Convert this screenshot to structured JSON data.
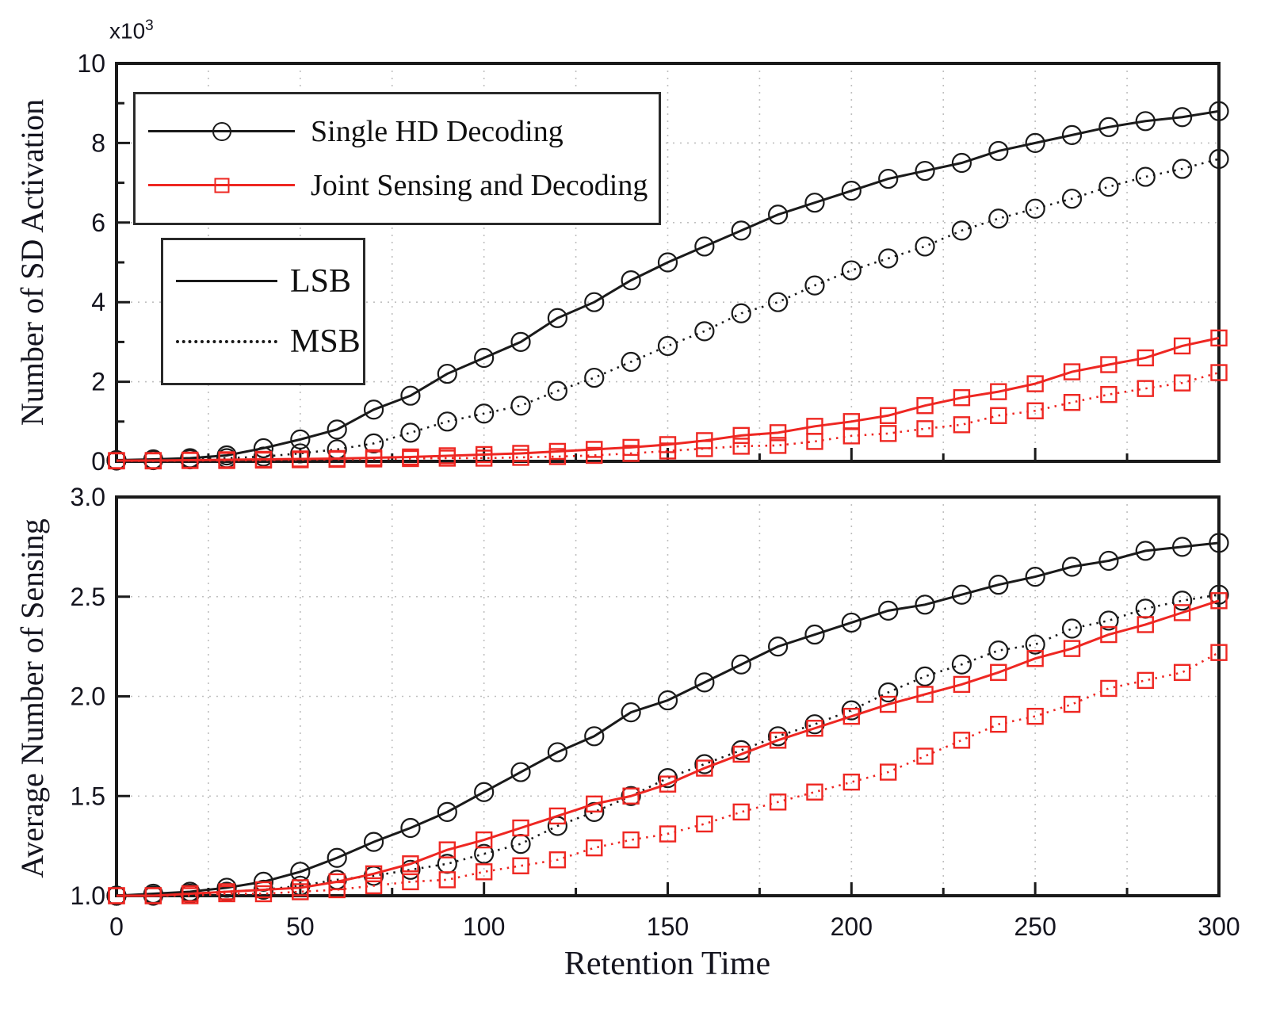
{
  "figure": {
    "xlabel": "Retention Time",
    "multiplier_base": "x10",
    "multiplier_exp": "3",
    "colors": {
      "black_series": "#1a1a1a",
      "red_series": "#ee2722",
      "grid": "#bfbfbf"
    }
  },
  "legend_series": {
    "items": [
      {
        "label": "Single HD Decoding",
        "color": "#1a1a1a",
        "marker": "circle"
      },
      {
        "label": "Joint Sensing and Decoding",
        "color": "#ee2722",
        "marker": "square"
      }
    ]
  },
  "legend_linestyle": {
    "items": [
      {
        "label": "LSB",
        "line": "solid"
      },
      {
        "label": "MSB",
        "line": "dotted"
      }
    ]
  },
  "chart_data": [
    {
      "type": "line",
      "name": "sd-activation-plot",
      "title": "",
      "xlabel": "",
      "ylabel": "Number of SD Activation",
      "y_multiplier": "x10^3",
      "xlim": [
        0,
        300
      ],
      "ylim": [
        0,
        10
      ],
      "xticks": [
        0,
        50,
        100,
        150,
        200,
        250,
        300
      ],
      "xtick_labels": [
        "0",
        "50",
        "100",
        "150",
        "200",
        "250",
        "300"
      ],
      "show_xtick_labels": false,
      "xminor": 25,
      "yticks": [
        0,
        2,
        4,
        6,
        8,
        10
      ],
      "ytick_labels": [
        "0",
        "2",
        "4",
        "6",
        "8",
        "10"
      ],
      "yminors": [
        1,
        3,
        5,
        7,
        9
      ],
      "ygrid": [
        2,
        4,
        6,
        8
      ],
      "grid": true,
      "legend_position": "upper-left",
      "x": [
        0,
        10,
        20,
        30,
        40,
        50,
        60,
        70,
        80,
        90,
        100,
        110,
        120,
        130,
        140,
        150,
        160,
        170,
        180,
        190,
        200,
        210,
        220,
        230,
        240,
        250,
        260,
        270,
        280,
        290,
        300
      ],
      "series": [
        {
          "id": "single-hd-lsb",
          "name": "Single HD Decoding LSB",
          "color": "#1a1a1a",
          "line": "solid",
          "marker": "circle",
          "values": [
            0.03,
            0.05,
            0.08,
            0.15,
            0.33,
            0.55,
            0.8,
            1.3,
            1.65,
            2.2,
            2.6,
            3.0,
            3.6,
            4.0,
            4.55,
            5.0,
            5.4,
            5.8,
            6.2,
            6.5,
            6.8,
            7.1,
            7.3,
            7.5,
            7.8,
            8.0,
            8.2,
            8.4,
            8.55,
            8.65,
            8.8
          ]
        },
        {
          "id": "single-hd-msb",
          "name": "Single HD Decoding MSB",
          "color": "#1a1a1a",
          "line": "dotted",
          "marker": "circle",
          "values": [
            0.02,
            0.03,
            0.05,
            0.08,
            0.12,
            0.2,
            0.3,
            0.45,
            0.72,
            1.0,
            1.2,
            1.4,
            1.77,
            2.1,
            2.5,
            2.9,
            3.27,
            3.72,
            4.0,
            4.42,
            4.8,
            5.1,
            5.4,
            5.8,
            6.1,
            6.35,
            6.6,
            6.9,
            7.15,
            7.35,
            7.6
          ]
        },
        {
          "id": "joint-lsb",
          "name": "Joint Sensing and Decoding LSB",
          "color": "#ee2722",
          "line": "solid",
          "marker": "square",
          "values": [
            0.02,
            0.02,
            0.03,
            0.04,
            0.05,
            0.06,
            0.07,
            0.09,
            0.11,
            0.14,
            0.17,
            0.2,
            0.25,
            0.3,
            0.35,
            0.42,
            0.52,
            0.65,
            0.72,
            0.88,
            1.0,
            1.15,
            1.4,
            1.6,
            1.75,
            1.95,
            2.25,
            2.43,
            2.6,
            2.9,
            3.1
          ]
        },
        {
          "id": "joint-msb",
          "name": "Joint Sensing and Decoding MSB",
          "color": "#ee2722",
          "line": "dotted",
          "marker": "square",
          "values": [
            0.01,
            0.01,
            0.02,
            0.02,
            0.03,
            0.04,
            0.05,
            0.06,
            0.07,
            0.08,
            0.08,
            0.1,
            0.12,
            0.15,
            0.2,
            0.26,
            0.32,
            0.38,
            0.4,
            0.5,
            0.64,
            0.7,
            0.82,
            0.92,
            1.15,
            1.27,
            1.48,
            1.68,
            1.83,
            1.97,
            2.23
          ]
        }
      ]
    },
    {
      "type": "line",
      "name": "avg-sensing-plot",
      "title": "",
      "xlabel": "Retention Time",
      "ylabel": "Average Number of Sensing",
      "xlim": [
        0,
        300
      ],
      "ylim": [
        1.0,
        3.0
      ],
      "xticks": [
        0,
        50,
        100,
        150,
        200,
        250,
        300
      ],
      "xtick_labels": [
        "0",
        "50",
        "100",
        "150",
        "200",
        "250",
        "300"
      ],
      "show_xtick_labels": true,
      "xminor": 25,
      "yticks": [
        1.0,
        1.5,
        2.0,
        2.5,
        3.0
      ],
      "ytick_labels": [
        "1.0",
        "1.5",
        "2.0",
        "2.5",
        "3.0"
      ],
      "yminors": [],
      "ygrid": [
        1.5,
        2.0,
        2.5
      ],
      "grid": true,
      "legend_position": "none",
      "x": [
        0,
        10,
        20,
        30,
        40,
        50,
        60,
        70,
        80,
        90,
        100,
        110,
        120,
        130,
        140,
        150,
        160,
        170,
        180,
        190,
        200,
        210,
        220,
        230,
        240,
        250,
        260,
        270,
        280,
        290,
        300
      ],
      "series": [
        {
          "id": "single-hd-lsb",
          "name": "Single HD Decoding LSB",
          "color": "#1a1a1a",
          "line": "solid",
          "marker": "circle",
          "values": [
            1.0,
            1.01,
            1.02,
            1.04,
            1.07,
            1.12,
            1.19,
            1.27,
            1.34,
            1.42,
            1.52,
            1.62,
            1.72,
            1.8,
            1.92,
            1.98,
            2.07,
            2.16,
            2.25,
            2.31,
            2.37,
            2.43,
            2.46,
            2.51,
            2.56,
            2.6,
            2.65,
            2.68,
            2.73,
            2.75,
            2.77
          ]
        },
        {
          "id": "single-hd-msb",
          "name": "Single HD Decoding MSB",
          "color": "#1a1a1a",
          "line": "dotted",
          "marker": "circle",
          "values": [
            1.0,
            1.0,
            1.01,
            1.02,
            1.03,
            1.05,
            1.08,
            1.1,
            1.13,
            1.16,
            1.21,
            1.26,
            1.35,
            1.42,
            1.5,
            1.59,
            1.66,
            1.73,
            1.8,
            1.86,
            1.93,
            2.02,
            2.1,
            2.16,
            2.23,
            2.26,
            2.34,
            2.38,
            2.44,
            2.48,
            2.51
          ]
        },
        {
          "id": "joint-lsb",
          "name": "Joint Sensing and Decoding LSB",
          "color": "#ee2722",
          "line": "solid",
          "marker": "square",
          "values": [
            1.0,
            1.0,
            1.01,
            1.02,
            1.03,
            1.04,
            1.07,
            1.11,
            1.16,
            1.23,
            1.28,
            1.34,
            1.4,
            1.46,
            1.5,
            1.56,
            1.64,
            1.71,
            1.78,
            1.84,
            1.9,
            1.96,
            2.01,
            2.06,
            2.12,
            2.19,
            2.24,
            2.31,
            2.36,
            2.42,
            2.48
          ]
        },
        {
          "id": "joint-msb",
          "name": "Joint Sensing and Decoding MSB",
          "color": "#ee2722",
          "line": "dotted",
          "marker": "square",
          "values": [
            1.0,
            1.0,
            1.0,
            1.01,
            1.01,
            1.02,
            1.03,
            1.05,
            1.07,
            1.08,
            1.12,
            1.15,
            1.18,
            1.24,
            1.28,
            1.31,
            1.36,
            1.42,
            1.47,
            1.52,
            1.57,
            1.62,
            1.7,
            1.78,
            1.86,
            1.9,
            1.96,
            2.04,
            2.08,
            2.12,
            2.22
          ]
        }
      ]
    }
  ]
}
